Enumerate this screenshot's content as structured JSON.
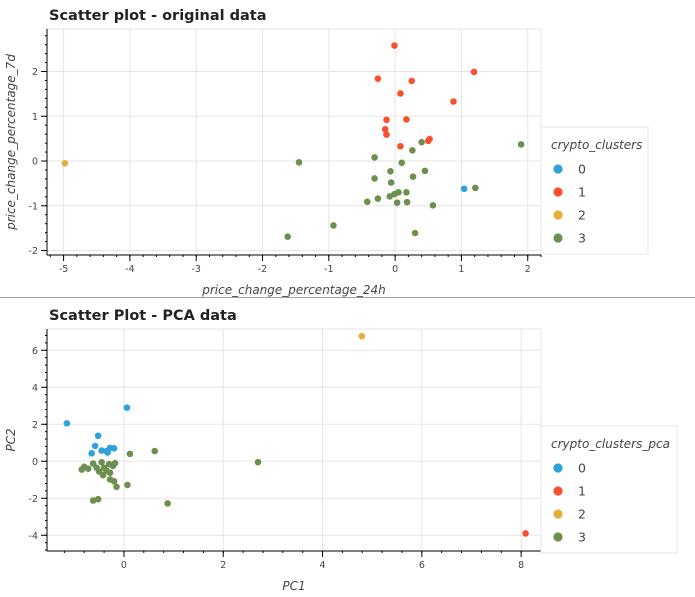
{
  "chart_data": [
    {
      "type": "scatter",
      "title": "Scatter plot - original data",
      "xlabel": "price_change_percentage_24h",
      "ylabel": "price_change_percentage_7d",
      "xlim": [
        -5.25,
        2.2
      ],
      "ylim": [
        -2.1,
        2.95
      ],
      "xticks": [
        -5,
        -4,
        -3,
        -2,
        -1,
        0,
        1,
        2
      ],
      "yticks": [
        -2,
        -1,
        0,
        1,
        2
      ],
      "grid": true,
      "legend_title": "crypto_clusters",
      "legend_position": "right",
      "series": [
        {
          "name": "0",
          "color": "#30a2da",
          "points": [
            [
              1.04,
              -0.62
            ]
          ]
        },
        {
          "name": "1",
          "color": "#fc4f30",
          "points": [
            [
              -0.01,
              2.58
            ],
            [
              1.19,
              1.99
            ],
            [
              -0.26,
              1.84
            ],
            [
              0.25,
              1.79
            ],
            [
              0.08,
              1.51
            ],
            [
              0.88,
              1.33
            ],
            [
              -0.13,
              0.92
            ],
            [
              0.17,
              0.93
            ],
            [
              -0.15,
              0.71
            ],
            [
              -0.13,
              0.59
            ],
            [
              0.52,
              0.49
            ],
            [
              0.5,
              0.45
            ],
            [
              0.08,
              0.33
            ]
          ]
        },
        {
          "name": "2",
          "color": "#e5ae38",
          "points": [
            [
              -4.98,
              -0.05
            ]
          ]
        },
        {
          "name": "3",
          "color": "#6d904f",
          "points": [
            [
              1.9,
              0.37
            ],
            [
              0.4,
              0.42
            ],
            [
              0.26,
              0.24
            ],
            [
              -0.31,
              0.08
            ],
            [
              0.1,
              -0.04
            ],
            [
              -1.45,
              -0.03
            ],
            [
              -0.07,
              -0.23
            ],
            [
              0.45,
              -0.22
            ],
            [
              -0.31,
              -0.39
            ],
            [
              -0.06,
              -0.48
            ],
            [
              0.27,
              -0.35
            ],
            [
              0.05,
              -0.7
            ],
            [
              0.17,
              -0.7
            ],
            [
              -0.01,
              -0.74
            ],
            [
              -0.08,
              -0.79
            ],
            [
              -0.26,
              -0.84
            ],
            [
              -0.42,
              -0.91
            ],
            [
              0.03,
              -0.93
            ],
            [
              0.18,
              -0.92
            ],
            [
              0.57,
              -0.99
            ],
            [
              -0.93,
              -1.44
            ],
            [
              0.3,
              -1.61
            ],
            [
              -1.62,
              -1.69
            ],
            [
              1.21,
              -0.6
            ]
          ]
        }
      ]
    },
    {
      "type": "scatter",
      "title": "Scatter Plot - PCA data",
      "xlabel": "PC1",
      "ylabel": "PC2",
      "xlim": [
        -1.55,
        8.4
      ],
      "ylim": [
        -4.85,
        7.15
      ],
      "xticks": [
        0,
        2,
        4,
        6,
        8
      ],
      "yticks": [
        -4,
        -2,
        0,
        2,
        4,
        6
      ],
      "grid": true,
      "legend_title": "crypto_clusters_pca",
      "legend_position": "right",
      "series": [
        {
          "name": "0",
          "color": "#30a2da",
          "points": [
            [
              -1.15,
              2.05
            ],
            [
              0.06,
              2.9
            ],
            [
              -0.52,
              1.38
            ],
            [
              -0.58,
              0.83
            ],
            [
              -0.65,
              0.43
            ],
            [
              -0.45,
              0.58
            ],
            [
              -0.35,
              0.55
            ],
            [
              -0.28,
              0.72
            ],
            [
              -0.33,
              0.47
            ],
            [
              -0.2,
              0.7
            ]
          ]
        },
        {
          "name": "1",
          "color": "#fc4f30",
          "points": [
            [
              8.09,
              -3.9
            ]
          ]
        },
        {
          "name": "2",
          "color": "#e5ae38",
          "points": [
            [
              4.79,
              6.76
            ]
          ]
        },
        {
          "name": "3",
          "color": "#6d904f",
          "points": [
            [
              0.62,
              0.55
            ],
            [
              0.12,
              0.4
            ],
            [
              2.7,
              -0.05
            ],
            [
              -0.8,
              -0.3
            ],
            [
              -0.72,
              -0.4
            ],
            [
              -0.62,
              -0.12
            ],
            [
              -0.55,
              -0.35
            ],
            [
              -0.45,
              -0.05
            ],
            [
              -0.4,
              -0.35
            ],
            [
              -0.35,
              -0.5
            ],
            [
              -0.28,
              -0.62
            ],
            [
              -0.22,
              -0.25
            ],
            [
              -0.18,
              -0.1
            ],
            [
              -0.3,
              -0.15
            ],
            [
              -0.5,
              -0.55
            ],
            [
              -0.42,
              -0.75
            ],
            [
              -0.28,
              -0.98
            ],
            [
              -0.2,
              -1.08
            ],
            [
              -0.15,
              -1.38
            ],
            [
              0.07,
              -1.28
            ],
            [
              -0.52,
              -2.05
            ],
            [
              -0.62,
              -2.12
            ],
            [
              0.88,
              -2.28
            ],
            [
              -0.85,
              -0.45
            ]
          ]
        }
      ]
    }
  ]
}
